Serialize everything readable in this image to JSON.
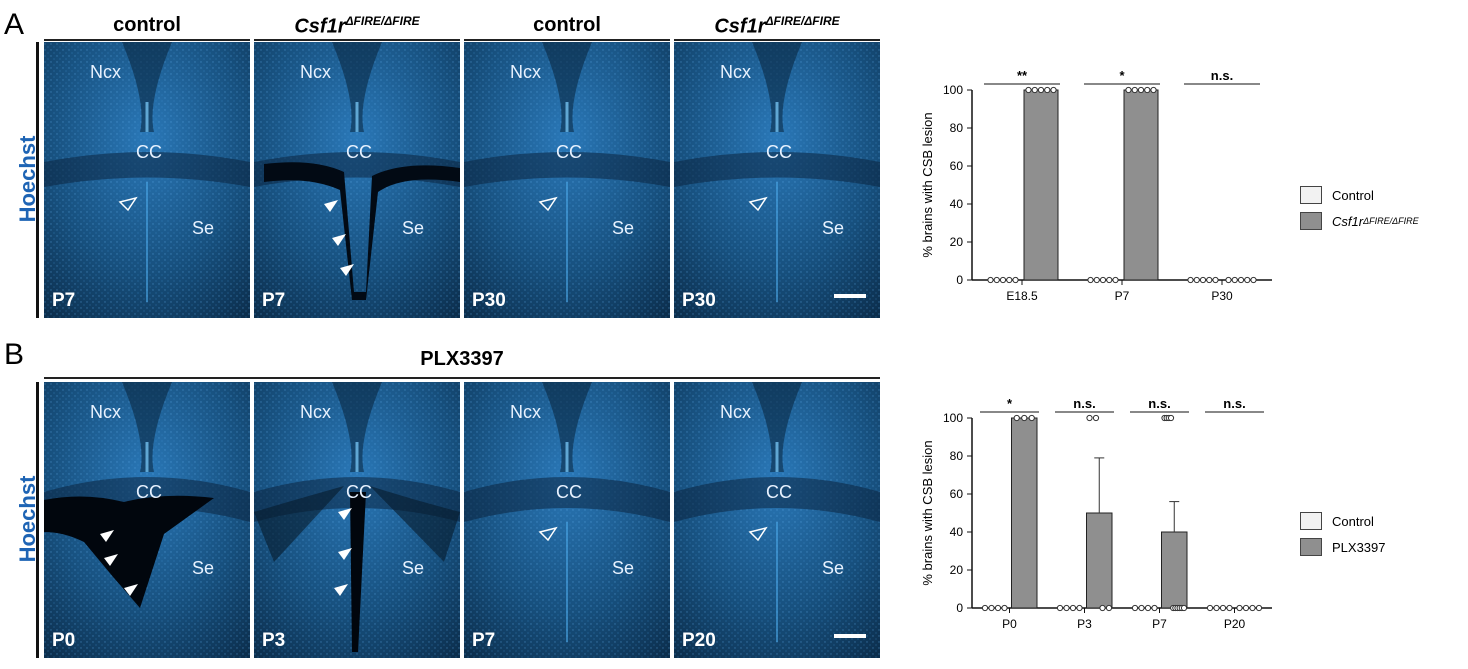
{
  "figure": {
    "panels": [
      {
        "letter": "A",
        "stain": "Hoechst",
        "headers": [
          {
            "text": "control",
            "italic": false
          },
          {
            "text": "Csf1r",
            "sup": "ΔFIRE/ΔFIRE",
            "italic": true
          },
          {
            "text": "control",
            "italic": false
          },
          {
            "text": "Csf1r",
            "sup": "ΔFIRE/ΔFIRE",
            "italic": true
          }
        ],
        "images": [
          {
            "age": "P7",
            "labels": [
              "Ncx",
              "CC",
              "Se"
            ],
            "scalebar": false
          },
          {
            "age": "P7",
            "labels": [
              "Ncx",
              "CC",
              "Se"
            ],
            "scalebar": false
          },
          {
            "age": "P30",
            "labels": [
              "Ncx",
              "CC",
              "Se"
            ],
            "scalebar": false
          },
          {
            "age": "P30",
            "labels": [
              "Ncx",
              "CC",
              "Se"
            ],
            "scalebar": true
          }
        ]
      },
      {
        "letter": "B",
        "stain": "Hoechst",
        "span_header": "PLX3397",
        "images": [
          {
            "age": "P0",
            "labels": [
              "Ncx",
              "CC",
              "Se"
            ],
            "scalebar": false
          },
          {
            "age": "P3",
            "labels": [
              "Ncx",
              "CC",
              "Se"
            ],
            "scalebar": false
          },
          {
            "age": "P7",
            "labels": [
              "Ncx",
              "CC",
              "Se"
            ],
            "scalebar": false
          },
          {
            "age": "P20",
            "labels": [
              "Ncx",
              "CC",
              "Se"
            ],
            "scalebar": true
          }
        ]
      }
    ]
  },
  "chart_data": [
    {
      "type": "bar",
      "ylabel": "% brains with CSB lesion",
      "ylim": [
        0,
        100
      ],
      "yticks": [
        0,
        20,
        40,
        60,
        80,
        100
      ],
      "categories": [
        "E18.5",
        "P7",
        "P30"
      ],
      "series": [
        {
          "name": "Control",
          "values": [
            0,
            0,
            0
          ],
          "color": "#f2f2f2"
        },
        {
          "name": "Csf1r",
          "name_sup": "ΔFIRE/ΔFIRE",
          "values": [
            100,
            100,
            0
          ],
          "color": "#8f8f8f"
        }
      ],
      "points": [
        [
          [
            0,
            0,
            0,
            0,
            0
          ],
          [
            100,
            100,
            100,
            100,
            100
          ]
        ],
        [
          [
            0,
            0,
            0,
            0,
            0
          ],
          [
            100,
            100,
            100,
            100,
            100
          ]
        ],
        [
          [
            0,
            0,
            0,
            0,
            0
          ],
          [
            0,
            0,
            0,
            0,
            0
          ]
        ]
      ],
      "significance": [
        "**",
        "*",
        "n.s."
      ],
      "legend_position": "right"
    },
    {
      "type": "bar",
      "ylabel": "% brains with CSB lesion",
      "ylim": [
        0,
        100
      ],
      "yticks": [
        0,
        20,
        40,
        60,
        80,
        100
      ],
      "categories": [
        "P0",
        "P3",
        "P7",
        "P20"
      ],
      "series": [
        {
          "name": "Control",
          "values": [
            0,
            0,
            0,
            0
          ],
          "color": "#f2f2f2"
        },
        {
          "name": "PLX3397",
          "values": [
            100,
            50,
            40,
            0
          ],
          "error": [
            0,
            29,
            16,
            0
          ],
          "color": "#8f8f8f"
        }
      ],
      "points": [
        [
          [
            0,
            0,
            0,
            0
          ],
          [
            100,
            100,
            100
          ]
        ],
        [
          [
            0,
            0,
            0,
            0
          ],
          [
            100,
            100,
            0,
            0
          ]
        ],
        [
          [
            0,
            0,
            0,
            0
          ],
          [
            100,
            100,
            100,
            100,
            0,
            0,
            0,
            0,
            0,
            0
          ]
        ],
        [
          [
            0,
            0,
            0,
            0
          ],
          [
            0,
            0,
            0,
            0
          ]
        ]
      ],
      "significance": [
        "*",
        "n.s.",
        "n.s.",
        "n.s."
      ],
      "legend_position": "right"
    }
  ]
}
